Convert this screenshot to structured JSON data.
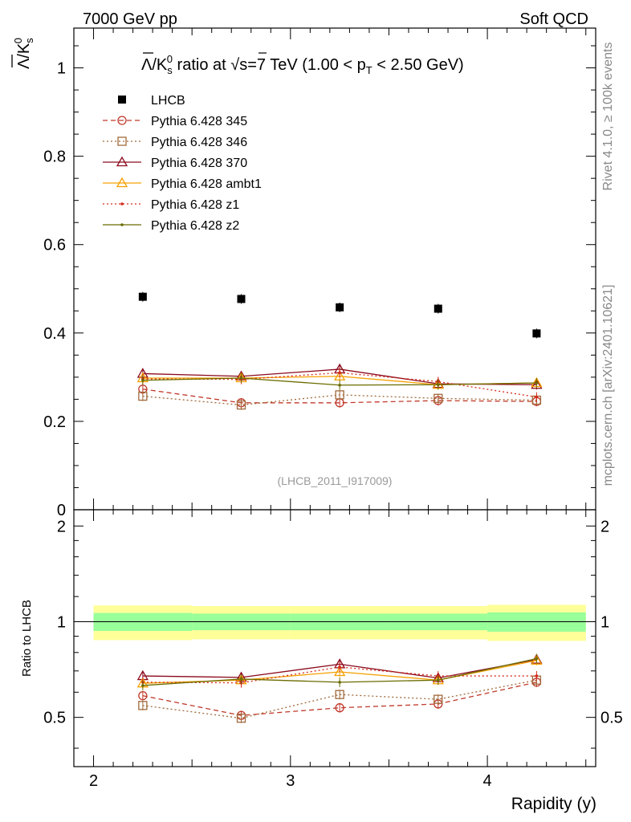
{
  "header": {
    "left": "7000 GeV pp",
    "right": "Soft QCD"
  },
  "side_labels": {
    "rivet": "Rivet 4.1.0, ≥ 100k events",
    "mcplots": "mcplots.cern.ch [arXiv:2401.10621]"
  },
  "analysis_id": "(LHCB_2011_I917009)",
  "chart_data": [
    {
      "type": "scatter",
      "panel": "main",
      "title_parts": {
        "lambda": "Λ",
        "slash_k": "/K",
        "sub_s": "s",
        "sup_0": "0",
        "ratio_at": " ratio at ",
        "sqrt": "√",
        "s_eq": "s=7 TeV (1.00 < p",
        "sub_T": "T",
        "range_end": " < 2.50 GeV)"
      },
      "ylabel_parts": {
        "lambda": "Λ",
        "slash_k": "/K",
        "sub_s": "s",
        "sup_0": "0"
      },
      "xlim": [
        1.9,
        4.55
      ],
      "ylim": [
        0,
        1.09
      ],
      "yticks": [
        0,
        0.2,
        0.4,
        0.6,
        0.8,
        1
      ],
      "ytick_labels": [
        "0",
        "0.2",
        "0.4",
        "0.6",
        "0.8",
        "1"
      ],
      "x": [
        2.25,
        2.75,
        3.25,
        3.75,
        4.25
      ],
      "bin_edges": [
        2.0,
        2.5,
        3.0,
        3.5,
        4.0,
        4.5
      ],
      "series": [
        {
          "name": "LHCB",
          "values": [
            0.482,
            0.477,
            0.458,
            0.455,
            0.399
          ],
          "color": "#000000",
          "marker": "filled-square",
          "line": "none"
        },
        {
          "name": "Pythia 6.428 345",
          "values": [
            0.273,
            0.242,
            0.242,
            0.247,
            0.245
          ],
          "color": "#c0392b",
          "marker": "open-circle",
          "line": "dashed"
        },
        {
          "name": "Pythia 6.428 346",
          "values": [
            0.257,
            0.237,
            0.26,
            0.252,
            0.248
          ],
          "color": "#a0693a",
          "marker": "open-square",
          "line": "dotted"
        },
        {
          "name": "Pythia 6.428 370",
          "values": [
            0.308,
            0.302,
            0.318,
            0.285,
            0.283
          ],
          "color": "#8b0a1e",
          "marker": "open-triangle",
          "line": "solid"
        },
        {
          "name": "Pythia 6.428 ambt1",
          "values": [
            0.298,
            0.298,
            0.302,
            0.283,
            0.287
          ],
          "color": "#f5a000",
          "marker": "open-triangle",
          "line": "solid"
        },
        {
          "name": "Pythia 6.428 z1",
          "values": [
            0.296,
            0.295,
            0.31,
            0.29,
            0.255
          ],
          "color": "#d42a1a",
          "marker": "dot",
          "line": "dotted"
        },
        {
          "name": "Pythia 6.428 z2",
          "values": [
            0.293,
            0.298,
            0.282,
            0.283,
            0.287
          ],
          "color": "#6b6b00",
          "marker": "dot",
          "line": "solid"
        }
      ]
    },
    {
      "type": "scatter",
      "panel": "ratio",
      "ylabel": "Ratio to LHCB",
      "xlabel": "Rapidity (y)",
      "xlim": [
        1.9,
        4.55
      ],
      "ylim": [
        0.35,
        2.25
      ],
      "yticks": [
        0.5,
        1,
        2
      ],
      "ytick_labels": [
        "0.5",
        "1",
        "2"
      ],
      "xticks": [
        2,
        3,
        4
      ],
      "xtick_labels": [
        "2",
        "3",
        "4"
      ],
      "x": [
        2.25,
        2.75,
        3.25,
        3.75,
        4.25
      ],
      "band_inner": [
        [
          0.935,
          1.065
        ],
        [
          0.94,
          1.06
        ],
        [
          0.94,
          1.06
        ],
        [
          0.94,
          1.06
        ],
        [
          0.93,
          1.07
        ]
      ],
      "band_outer": [
        [
          0.875,
          1.125
        ],
        [
          0.88,
          1.12
        ],
        [
          0.88,
          1.12
        ],
        [
          0.88,
          1.12
        ],
        [
          0.87,
          1.13
        ]
      ],
      "series": [
        {
          "name": "Pythia 6.428 345",
          "values": [
            0.585,
            0.507,
            0.536,
            0.551,
            0.645
          ],
          "color": "#c0392b",
          "marker": "open-circle",
          "line": "dashed"
        },
        {
          "name": "Pythia 6.428 346",
          "values": [
            0.545,
            0.497,
            0.59,
            0.57,
            0.655
          ],
          "color": "#a0693a",
          "marker": "open-square",
          "line": "dotted"
        },
        {
          "name": "Pythia 6.428 370",
          "values": [
            0.675,
            0.668,
            0.735,
            0.665,
            0.76
          ],
          "color": "#8b0a1e",
          "marker": "open-triangle",
          "line": "solid"
        },
        {
          "name": "Pythia 6.428 ambt1",
          "values": [
            0.64,
            0.655,
            0.695,
            0.655,
            0.755
          ],
          "color": "#f5a000",
          "marker": "open-triangle",
          "line": "solid"
        },
        {
          "name": "Pythia 6.428 z1",
          "values": [
            0.645,
            0.642,
            0.72,
            0.675,
            0.675
          ],
          "color": "#d42a1a",
          "marker": "dot",
          "line": "dotted"
        },
        {
          "name": "Pythia 6.428 z2",
          "values": [
            0.63,
            0.66,
            0.645,
            0.655,
            0.765
          ],
          "color": "#6b6b00",
          "marker": "dot",
          "line": "solid"
        }
      ]
    }
  ]
}
